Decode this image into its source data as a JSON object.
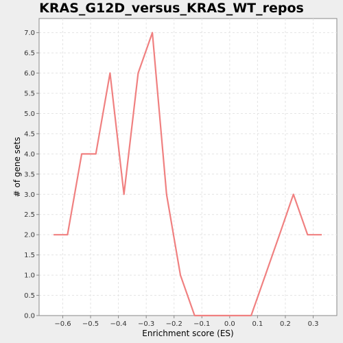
{
  "chart_data": {
    "type": "line",
    "title": "KRAS_G12D_versus_KRAS_WT_repos",
    "xlabel": "Enrichment score (ES)",
    "ylabel": "# of gene sets",
    "xlim": [
      -0.685,
      0.385
    ],
    "ylim": [
      0,
      7.35
    ],
    "xticks": [
      -0.6,
      -0.5,
      -0.4,
      -0.3,
      -0.2,
      -0.1,
      0.0,
      0.1,
      0.2,
      0.3
    ],
    "xtick_labels": [
      "−0.6",
      "−0.5",
      "−0.4",
      "−0.3",
      "−0.2",
      "−0.1",
      "0.0",
      "0.1",
      "0.2",
      "0.3"
    ],
    "yticks": [
      0.0,
      0.5,
      1.0,
      1.5,
      2.0,
      2.5,
      3.0,
      3.5,
      4.0,
      4.5,
      5.0,
      5.5,
      6.0,
      6.5,
      7.0
    ],
    "ytick_labels": [
      "0.0",
      "0.5",
      "1.0",
      "1.5",
      "2.0",
      "2.5",
      "3.0",
      "3.5",
      "4.0",
      "4.5",
      "5.0",
      "5.5",
      "6.0",
      "6.5",
      "7.0"
    ],
    "grid": true,
    "series": [
      {
        "color": "#f08080",
        "x": [
          -0.633,
          -0.583,
          -0.532,
          -0.481,
          -0.43,
          -0.38,
          -0.329,
          -0.278,
          -0.227,
          -0.177,
          -0.126,
          -0.075,
          -0.024,
          0.026,
          0.077,
          0.128,
          0.179,
          0.229,
          0.28,
          0.331
        ],
        "y": [
          2,
          2,
          4,
          4,
          6,
          3,
          6,
          7,
          3,
          1,
          0,
          0,
          0,
          0,
          0,
          1,
          2,
          3,
          2,
          2
        ]
      }
    ]
  }
}
